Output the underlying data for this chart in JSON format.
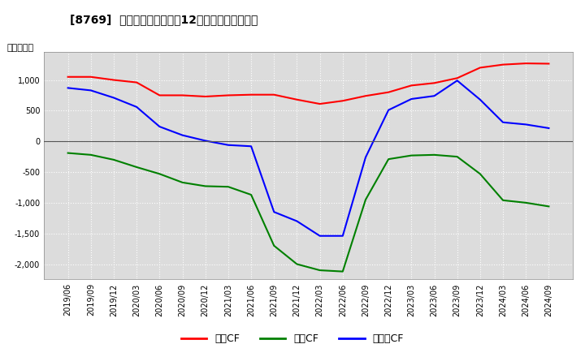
{
  "title": "[8769]  キャッシュフローの12か月移動合計の推移",
  "ylabel": "（百万円）",
  "background_color": "#ffffff",
  "plot_bg_color": "#dcdcdc",
  "grid_color": "#ffffff",
  "ylim": [
    -2250,
    1450
  ],
  "yticks": [
    -2000,
    -1500,
    -1000,
    -500,
    0,
    500,
    1000
  ],
  "x_labels": [
    "2019/06",
    "2019/09",
    "2019/12",
    "2020/03",
    "2020/06",
    "2020/09",
    "2020/12",
    "2021/03",
    "2021/06",
    "2021/09",
    "2021/12",
    "2022/03",
    "2022/06",
    "2022/09",
    "2022/12",
    "2023/03",
    "2023/06",
    "2023/09",
    "2023/12",
    "2024/03",
    "2024/06",
    "2024/09"
  ],
  "operating_cf": [
    1050,
    1050,
    1000,
    960,
    750,
    750,
    730,
    750,
    760,
    760,
    680,
    610,
    660,
    740,
    800,
    910,
    950,
    1030,
    1200,
    1250,
    1270,
    1265
  ],
  "investing_cf": [
    -190,
    -220,
    -300,
    -420,
    -530,
    -670,
    -730,
    -740,
    -870,
    -1700,
    -2000,
    -2100,
    -2120,
    -950,
    -290,
    -230,
    -220,
    -250,
    -530,
    -960,
    -1000,
    -1060
  ],
  "free_cf": [
    870,
    830,
    710,
    560,
    240,
    100,
    10,
    -60,
    -80,
    -1150,
    -1300,
    -1540,
    -1540,
    -260,
    510,
    690,
    740,
    990,
    680,
    310,
    275,
    215
  ],
  "line_colors": {
    "operating": "#ff0000",
    "investing": "#008000",
    "free": "#0000ff"
  },
  "legend_labels": [
    "営業CF",
    "投資CF",
    "フリーCF"
  ]
}
